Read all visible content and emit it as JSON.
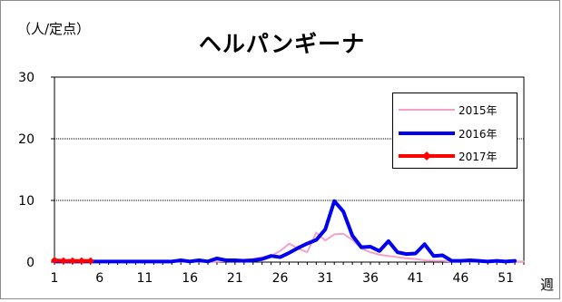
{
  "chart_data": {
    "type": "line",
    "title": "ヘルパンギーナ",
    "unit_label": "（人/定点）",
    "xlabel": "週",
    "ylabel": "",
    "ylim": [
      0,
      30
    ],
    "yticks": [
      0,
      10,
      20,
      30
    ],
    "xlim": [
      1,
      53
    ],
    "xticks": [
      1,
      6,
      11,
      16,
      21,
      26,
      31,
      36,
      41,
      46,
      51
    ],
    "grid": "horizontal",
    "legend_position": "top-right",
    "series": [
      {
        "name": "2015年",
        "color": "#f4a0c8",
        "marker": "none",
        "width": 2,
        "x": [
          1,
          2,
          3,
          4,
          5,
          6,
          7,
          8,
          9,
          10,
          11,
          12,
          13,
          14,
          15,
          16,
          17,
          18,
          19,
          20,
          21,
          22,
          23,
          24,
          25,
          26,
          27,
          28,
          29,
          30,
          31,
          32,
          33,
          34,
          35,
          36,
          37,
          38,
          39,
          40,
          41,
          42,
          43,
          44,
          45,
          46,
          47,
          48,
          49,
          50,
          51,
          52,
          53
        ],
        "values": [
          0.1,
          0.1,
          0.1,
          0.1,
          0.1,
          0.1,
          0.1,
          0.1,
          0.1,
          0.1,
          0.1,
          0.1,
          0.1,
          0.1,
          0.1,
          0.1,
          0.1,
          0.1,
          0.1,
          0.2,
          0.3,
          0.4,
          0.5,
          0.8,
          1.0,
          1.8,
          3.0,
          2.2,
          1.6,
          4.8,
          3.5,
          4.5,
          4.6,
          3.6,
          2.2,
          1.6,
          1.2,
          1.0,
          0.8,
          0.6,
          0.5,
          0.3,
          0.2,
          0.2,
          0.1,
          0.1,
          0.1,
          0.1,
          0.1,
          0.1,
          0.1,
          0.1,
          0.1
        ]
      },
      {
        "name": "2016年",
        "color": "#0000ee",
        "marker": "none",
        "width": 4,
        "x": [
          1,
          2,
          3,
          4,
          5,
          6,
          7,
          8,
          9,
          10,
          11,
          12,
          13,
          14,
          15,
          16,
          17,
          18,
          19,
          20,
          21,
          22,
          23,
          24,
          25,
          26,
          27,
          28,
          29,
          30,
          31,
          32,
          33,
          34,
          35,
          36,
          37,
          38,
          39,
          40,
          41,
          42,
          43,
          44,
          45,
          46,
          47,
          48,
          49,
          50,
          51,
          52
        ],
        "values": [
          0.1,
          0.1,
          0.1,
          0.1,
          0.1,
          0.1,
          0.1,
          0.1,
          0.1,
          0.1,
          0.1,
          0.1,
          0.1,
          0.1,
          0.3,
          0.1,
          0.3,
          0.1,
          0.6,
          0.3,
          0.3,
          0.2,
          0.3,
          0.5,
          1.0,
          0.8,
          1.5,
          2.3,
          3.0,
          3.6,
          5.3,
          9.9,
          8.2,
          4.3,
          2.4,
          2.5,
          1.8,
          3.4,
          1.6,
          1.3,
          1.4,
          2.9,
          1.0,
          1.1,
          0.2,
          0.2,
          0.3,
          0.2,
          0.1,
          0.2,
          0.1,
          0.2
        ]
      },
      {
        "name": "2017年",
        "color": "#ff0000",
        "marker": "diamond",
        "width": 4,
        "x": [
          1,
          2,
          3,
          4,
          5
        ],
        "values": [
          0.3,
          0.2,
          0.2,
          0.2,
          0.2
        ]
      }
    ]
  }
}
